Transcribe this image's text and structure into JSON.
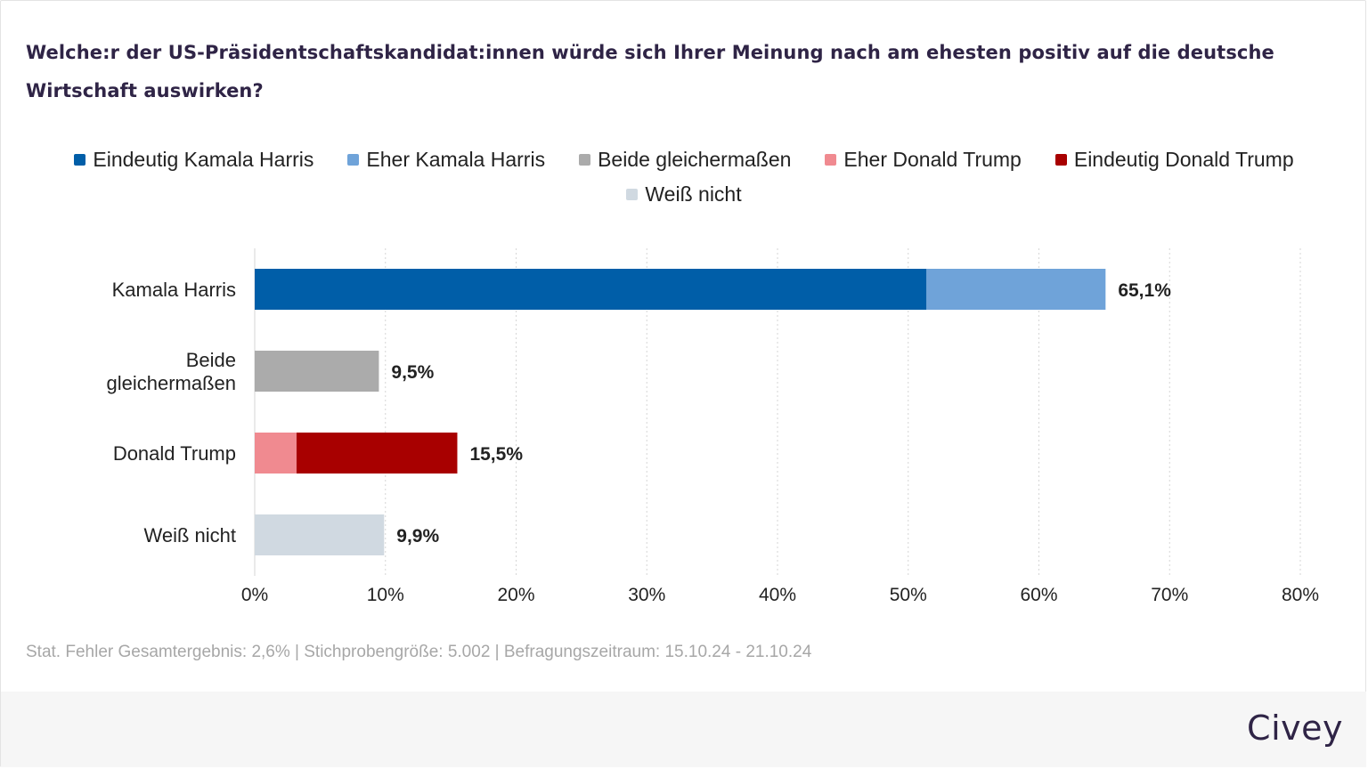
{
  "title": "Welche:r der US-Präsidentschaftskandidat:innen würde sich Ihrer Meinung nach am ehesten positiv auf die deutsche Wirtschaft auswirken?",
  "legend": [
    {
      "label": "Eindeutig Kamala Harris",
      "color": "#005ea8"
    },
    {
      "label": "Eher Kamala Harris",
      "color": "#6fa3d9"
    },
    {
      "label": "Beide gleichermaßen",
      "color": "#ababab"
    },
    {
      "label": "Eher Donald Trump",
      "color": "#f08a90"
    },
    {
      "label": "Eindeutig Donald Trump",
      "color": "#a80000"
    },
    {
      "label": "Weiß nicht",
      "color": "#d0d9e1"
    }
  ],
  "chart_data": {
    "type": "bar",
    "orientation": "horizontal",
    "stacked": true,
    "categories": [
      "Kamala Harris",
      "Beide gleichermaßen",
      "Donald Trump",
      "Weiß nicht"
    ],
    "bars": [
      {
        "category": "Kamala Harris",
        "total_label": "65,1%",
        "segments": [
          {
            "series": "Eindeutig Kamala Harris",
            "value": 51.4,
            "color": "#005ea8"
          },
          {
            "series": "Eher Kamala Harris",
            "value": 13.7,
            "color": "#6fa3d9"
          }
        ]
      },
      {
        "category": "Beide gleichermaßen",
        "total_label": "9,5%",
        "segments": [
          {
            "series": "Beide gleichermaßen",
            "value": 9.5,
            "color": "#ababab"
          }
        ]
      },
      {
        "category": "Donald Trump",
        "total_label": "15,5%",
        "segments": [
          {
            "series": "Eher Donald Trump",
            "value": 3.2,
            "color": "#f08a90"
          },
          {
            "series": "Eindeutig Donald Trump",
            "value": 12.3,
            "color": "#a80000"
          }
        ]
      },
      {
        "category": "Weiß nicht",
        "total_label": "9,9%",
        "segments": [
          {
            "series": "Weiß nicht",
            "value": 9.9,
            "color": "#d0d9e1"
          }
        ]
      }
    ],
    "x_ticks": [
      "0%",
      "10%",
      "20%",
      "30%",
      "40%",
      "50%",
      "60%",
      "70%",
      "80%"
    ],
    "xlim": [
      0,
      80
    ],
    "grid": true,
    "legend_position": "top"
  },
  "footer": {
    "note": "Stat. Fehler Gesamtergebnis: 2,6% | Stichprobengröße: 5.002 | Befragungszeitraum: 15.10.24 - 21.10.24",
    "brand": "Civey"
  }
}
